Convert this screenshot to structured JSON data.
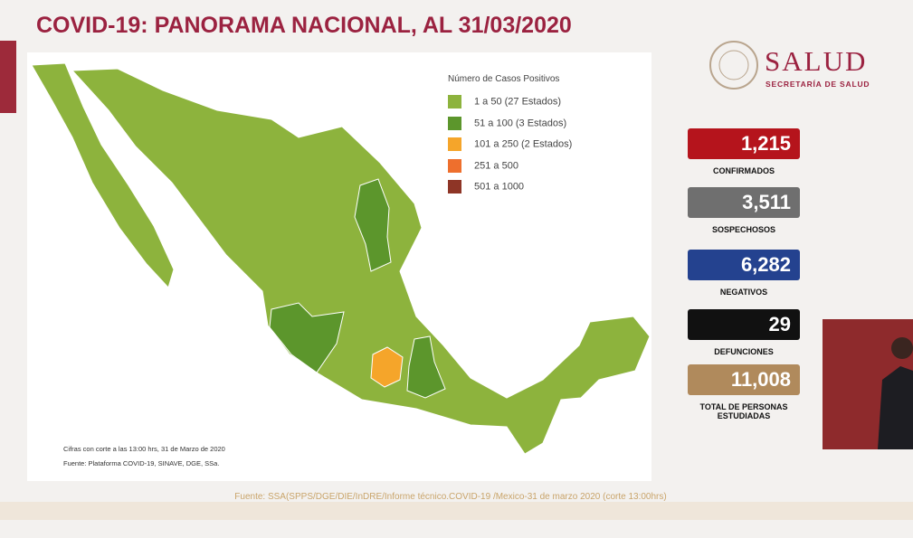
{
  "header": {
    "title": "COVID-19: PANORAMA NACIONAL, AL 31/03/2020"
  },
  "logo": {
    "name": "SALUD",
    "subtitle": "SECRETARÍA DE SALUD"
  },
  "legend": {
    "title": "Número de Casos Positivos",
    "items": [
      {
        "label": "1 a 50 (27 Estados)",
        "color": "#8db33d"
      },
      {
        "label": "51 a 100 (3 Estados)",
        "color": "#5c962c"
      },
      {
        "label": "101 a 250 (2 Estados)",
        "color": "#f5a52a"
      },
      {
        "label": "251 a 500",
        "color": "#ee6f2d"
      },
      {
        "label": "501 a 1000",
        "color": "#8e3526"
      }
    ]
  },
  "stats": [
    {
      "value": "1,215",
      "label": "CONFIRMADOS",
      "color": "#b5141c"
    },
    {
      "value": "3,511",
      "label": "SOSPECHOSOS",
      "color": "#6f6f6f"
    },
    {
      "value": "6,282",
      "label": "NEGATIVOS",
      "color": "#24428f"
    },
    {
      "value": "29",
      "label": "DEFUNCIONES",
      "color": "#111111"
    },
    {
      "value": "11,008",
      "label": "TOTAL DE PERSONAS ESTUDIADAS",
      "color": "#b08a5c"
    }
  ],
  "map_notes": [
    "Cifras con corte a las 13:00 hrs, 31 de Marzo de 2020",
    "Fuente: Plataforma COVID-19, SINAVE, DGE, SSa."
  ],
  "source": "Fuente: SSA(SPPS/DGE/DIE/InDRE/Informe técnico.COVID-19 /Mexico-31 de marzo 2020 (corte 13:00hrs)"
}
